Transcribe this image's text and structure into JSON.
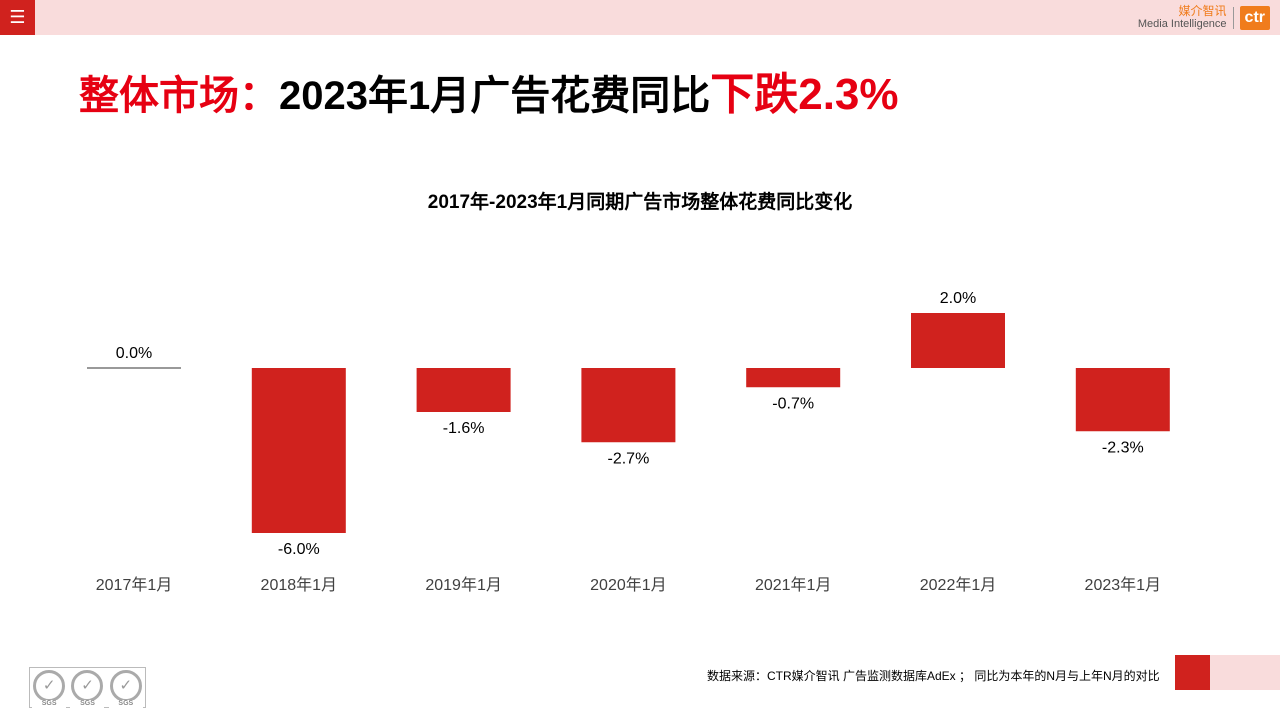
{
  "header": {
    "menu_icon": "hamburger-icon",
    "logo_cn": "媒介智讯",
    "logo_en": "Media Intelligence",
    "logo_mark": "ctr"
  },
  "title": {
    "prefix": "整体市场：",
    "main": "2023年1月广告花费同比",
    "highlight": "下跌2.3%"
  },
  "chart_data": {
    "type": "bar",
    "title": "2017年-2023年1月同期广告市场整体花费同比变化",
    "categories": [
      "2017年1月",
      "2018年1月",
      "2019年1月",
      "2020年1月",
      "2021年1月",
      "2022年1月",
      "2023年1月"
    ],
    "values": [
      0.0,
      -6.0,
      -1.6,
      -2.7,
      -0.7,
      2.0,
      -2.3
    ],
    "labels": [
      "0.0%",
      "-6.0%",
      "-1.6%",
      "-2.7%",
      "-0.7%",
      "2.0%",
      "-2.3%"
    ],
    "unit": "%",
    "ylim": [
      -6.0,
      2.0
    ],
    "grid": false,
    "bar_color": "#d0221e"
  },
  "footer": {
    "source": "数据来源：CTR媒介智讯 广告监测数据库AdEx ； 同比为本年的N月与上年N月的对比",
    "cert": "SGS"
  }
}
